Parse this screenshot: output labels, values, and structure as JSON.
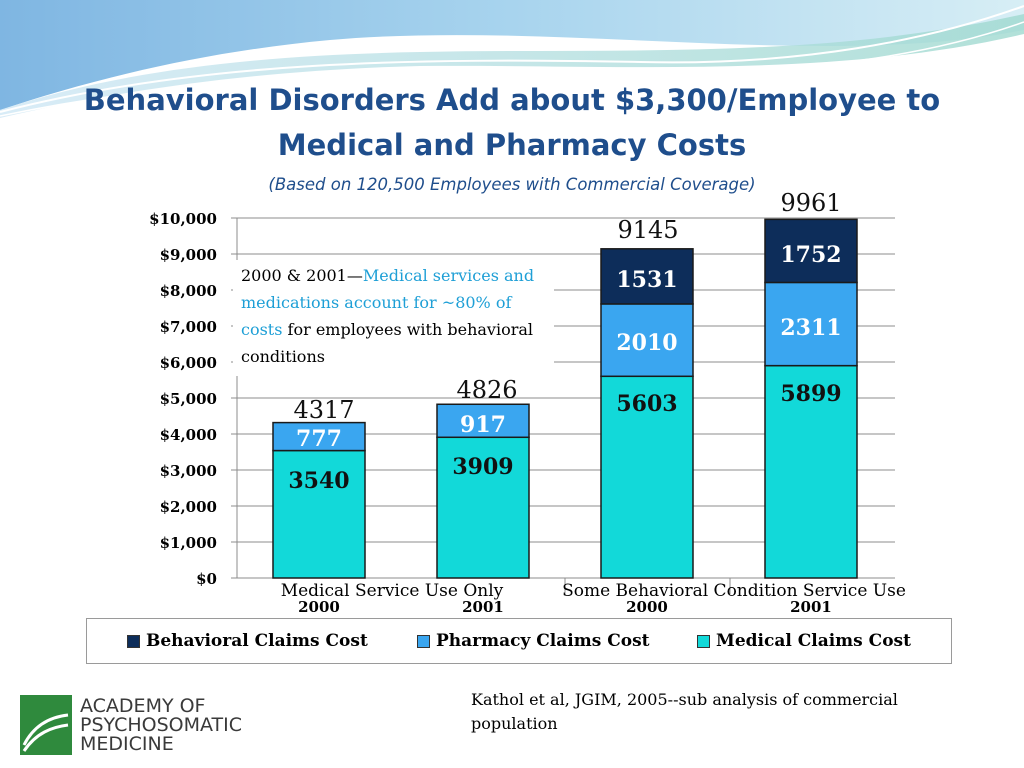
{
  "title": {
    "line1": "Behavioral Disorders Add about $3,300/Employee to",
    "line2": "Medical and Pharmacy Costs",
    "subtitle": "(Based on 120,500 Employees with Commercial Coverage)"
  },
  "annotation": {
    "part1": "2000 & 2001—",
    "highlight": "Medical services and medications account for ~80% of costs",
    "part2": " for employees with behavioral conditions"
  },
  "citation": "Kathol et al, JGIM, 2005--sub analysis of commercial population",
  "logo": {
    "name": "academy-logo",
    "lines": [
      "ACADEMY OF",
      "PSYCHOSOMATIC",
      "MEDICINE"
    ]
  },
  "colors": {
    "behavioral": "#0d2d5a",
    "pharmacy": "#3aa6f0",
    "medical": "#12d9d9",
    "title": "#1f4e8c"
  },
  "chart_data": {
    "type": "bar",
    "stacked": true,
    "categories": [
      "2000",
      "2001",
      "2000",
      "2001"
    ],
    "group_labels": [
      "Medical Service Use Only",
      "Some Behavioral Condition Service Use"
    ],
    "ylim": [
      0,
      10000
    ],
    "yticks": [
      {
        "value": 0,
        "label": "$0"
      },
      {
        "value": 1000,
        "label": "$1,000"
      },
      {
        "value": 2000,
        "label": "$2,000"
      },
      {
        "value": 3000,
        "label": "$3,000"
      },
      {
        "value": 4000,
        "label": "$4,000"
      },
      {
        "value": 5000,
        "label": "$5,000"
      },
      {
        "value": 6000,
        "label": "$6,000"
      },
      {
        "value": 7000,
        "label": "$7,000"
      },
      {
        "value": 8000,
        "label": "$8,000"
      },
      {
        "value": 9000,
        "label": "$9,000"
      },
      {
        "value": 10000,
        "label": "$10,000"
      }
    ],
    "grid": true,
    "legend_position": "bottom",
    "series": [
      {
        "name": "Medical Claims Cost",
        "values": [
          3540,
          3909,
          5603,
          5899
        ]
      },
      {
        "name": "Pharmacy Claims Cost",
        "values": [
          777,
          917,
          2010,
          2311
        ]
      },
      {
        "name": "Behavioral Claims Cost",
        "values": [
          0,
          0,
          1531,
          1752
        ]
      }
    ],
    "totals": [
      4317,
      4826,
      9145,
      9961
    ],
    "legend": [
      "Behavioral Claims Cost",
      "Pharmacy Claims Cost",
      "Medical Claims Cost"
    ]
  }
}
